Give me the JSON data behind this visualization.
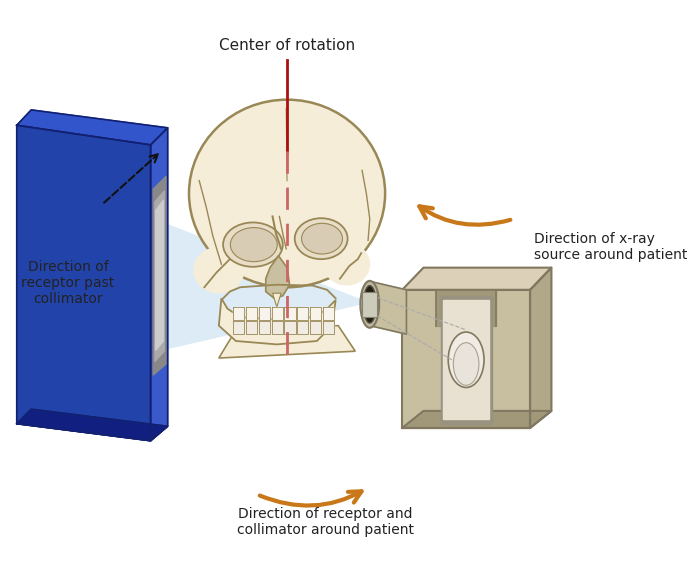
{
  "bg_color": "#ffffff",
  "labels": {
    "center_of_rotation": "Center of rotation",
    "direction_receptor_past": "Direction of\nreceptor past\ncollimator",
    "direction_xray_source": "Direction of x-ray\nsource around patient",
    "direction_receptor_collimator": "Direction of receptor and\ncollimator around patient"
  },
  "colors": {
    "blue_panel_front": "#2244aa",
    "blue_panel_top": "#3355cc",
    "blue_panel_side": "#1a3490",
    "blue_panel_edge": "#112070",
    "blue_dark": "#112080",
    "collimator_body": "#c8bfa0",
    "collimator_top": "#ddd0b8",
    "collimator_side": "#b0a888",
    "collimator_edge": "#807860",
    "slot_outer": "#888888",
    "slot_inner": "#aaaaaa",
    "slot_light": "#cccccc",
    "tube_body": "#c8bfa0",
    "tube_opening": "#555045",
    "tube_inner": "#111008",
    "beam_blue": "#c5dff0",
    "beam_alpha": 0.6,
    "center_line_red": "#aa1111",
    "center_dashed_red": "#cc6666",
    "skull_fill": "#f5edd8",
    "skull_outline": "#998855",
    "skull_shadow": "#e8dfc0",
    "arrow_orange": "#c87818",
    "black": "#111111",
    "text_color": "#222222"
  }
}
